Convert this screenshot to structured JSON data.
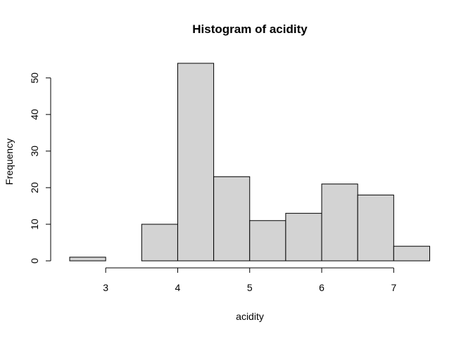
{
  "chart_data": {
    "type": "bar",
    "title": "Histogram of acidity",
    "xlabel": "acidity",
    "ylabel": "Frequency",
    "bins": [
      {
        "from": 2.5,
        "to": 3.0,
        "count": 1
      },
      {
        "from": 3.0,
        "to": 3.5,
        "count": 0
      },
      {
        "from": 3.5,
        "to": 4.0,
        "count": 10
      },
      {
        "from": 4.0,
        "to": 4.5,
        "count": 54
      },
      {
        "from": 4.5,
        "to": 5.0,
        "count": 23
      },
      {
        "from": 5.0,
        "to": 5.5,
        "count": 11
      },
      {
        "from": 5.5,
        "to": 6.0,
        "count": 13
      },
      {
        "from": 6.0,
        "to": 6.5,
        "count": 21
      },
      {
        "from": 6.5,
        "to": 7.0,
        "count": 18
      },
      {
        "from": 7.0,
        "to": 7.5,
        "count": 4
      }
    ],
    "xlim": [
      2.5,
      7.5
    ],
    "ylim": [
      0,
      54
    ],
    "xticks": [
      3,
      4,
      5,
      6,
      7
    ],
    "yticks": [
      0,
      10,
      20,
      30,
      40,
      50
    ],
    "grid": false,
    "bar_color": "#d3d3d3",
    "edge_color": "#000000"
  }
}
